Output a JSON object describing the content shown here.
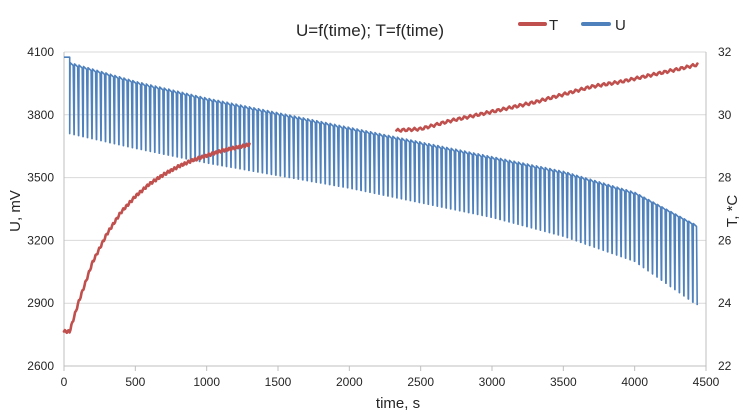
{
  "chart_data": {
    "type": "line",
    "title": "U=f(time);  T=f(time)",
    "xlabel": "time, s",
    "ylabel_left": "U, mV",
    "ylabel_right": "T, *C",
    "xlim": [
      0,
      4500
    ],
    "ylim_left": [
      2600,
      4100
    ],
    "ylim_right": [
      22,
      32
    ],
    "x_ticks": [
      0,
      500,
      1000,
      1500,
      2000,
      2500,
      3000,
      3500,
      4000,
      4500
    ],
    "y_left_ticks": [
      2600,
      2900,
      3200,
      3500,
      3800,
      4100
    ],
    "y_right_ticks": [
      22,
      24,
      26,
      28,
      30,
      32
    ],
    "grid": "horizontal",
    "legend_position": "top-right",
    "colors": {
      "T": "#c0504d",
      "U": "#4f81bd",
      "grid": "#d9d9d9",
      "axis": "#bfbfbf"
    },
    "series": [
      {
        "name": "U",
        "axis": "left",
        "color": "#4f81bd",
        "pattern": "pulsed",
        "initial_step": {
          "t0": 0,
          "t1": 40,
          "value": 4075
        },
        "pulse_count": 140,
        "pulse_start": 40,
        "pulse_end": 4440,
        "upper_envelope": {
          "x": [
            40,
            500,
            1000,
            1500,
            2000,
            2500,
            3000,
            3500,
            4000,
            4440
          ],
          "y": [
            4050,
            3960,
            3880,
            3810,
            3740,
            3670,
            3600,
            3530,
            3430,
            3270
          ]
        },
        "lower_envelope": {
          "x": [
            40,
            500,
            1000,
            1500,
            2000,
            2500,
            3000,
            3500,
            4000,
            4440
          ],
          "y": [
            3710,
            3640,
            3570,
            3510,
            3450,
            3380,
            3310,
            3220,
            3100,
            2890
          ]
        }
      },
      {
        "name": "T",
        "axis": "right",
        "color": "#c0504d",
        "segments": [
          {
            "x": [
              0,
              40,
              100,
              200,
              300,
              400,
              500,
              600,
              700,
              800,
              900,
              1000,
              1100,
              1200,
              1300
            ],
            "y": [
              23.1,
              23.1,
              24.0,
              25.3,
              26.2,
              26.9,
              27.4,
              27.8,
              28.1,
              28.35,
              28.55,
              28.7,
              28.85,
              28.95,
              29.05
            ]
          },
          {
            "x": [
              2330,
              2500,
              2700,
              2900,
              3100,
              3300,
              3500,
              3700,
              3900,
              4100,
              4300,
              4440
            ],
            "y": [
              29.5,
              29.55,
              29.8,
              30.0,
              30.2,
              30.4,
              30.65,
              30.9,
              31.05,
              31.25,
              31.45,
              31.6
            ]
          }
        ]
      }
    ]
  }
}
